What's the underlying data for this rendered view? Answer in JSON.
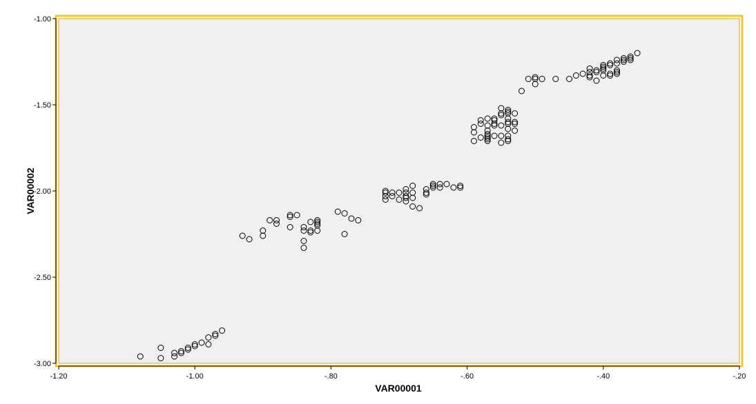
{
  "chart_data": {
    "type": "scatter",
    "xlabel": "VAR00001",
    "ylabel": "VAR00002",
    "xlim": [
      -1.2,
      -0.2
    ],
    "ylim": [
      -3.0,
      -1.0
    ],
    "xticks": [
      -1.2,
      -1.0,
      -0.8,
      -0.6,
      -0.4,
      -0.2
    ],
    "xtick_labels": [
      "-1.20",
      "-1.00",
      "-.80",
      "-.60",
      "-.40",
      "-.20"
    ],
    "yticks": [
      -1.0,
      -1.5,
      -2.0,
      -2.5,
      -3.0
    ],
    "ytick_labels": [
      "-1.00",
      "-1.50",
      "-2.00",
      "-2.50",
      "-3.00"
    ],
    "grid": false,
    "legend": "none",
    "colors": {
      "plot_background": "#f0f0f0",
      "frame": "#f2c43c",
      "marker_stroke": "#000000"
    },
    "marker": "open-circle",
    "points": [
      [
        -1.08,
        -2.96
      ],
      [
        -1.05,
        -2.91
      ],
      [
        -1.05,
        -2.97
      ],
      [
        -1.03,
        -2.94
      ],
      [
        -1.03,
        -2.96
      ],
      [
        -1.02,
        -2.93
      ],
      [
        -1.02,
        -2.94
      ],
      [
        -1.01,
        -2.91
      ],
      [
        -1.01,
        -2.92
      ],
      [
        -1.0,
        -2.9
      ],
      [
        -1.0,
        -2.89
      ],
      [
        -0.99,
        -2.88
      ],
      [
        -0.98,
        -2.85
      ],
      [
        -0.98,
        -2.89
      ],
      [
        -0.97,
        -2.83
      ],
      [
        -0.97,
        -2.84
      ],
      [
        -0.96,
        -2.81
      ],
      [
        -0.93,
        -2.26
      ],
      [
        -0.92,
        -2.28
      ],
      [
        -0.9,
        -2.23
      ],
      [
        -0.9,
        -2.26
      ],
      [
        -0.89,
        -2.17
      ],
      [
        -0.88,
        -2.17
      ],
      [
        -0.88,
        -2.19
      ],
      [
        -0.86,
        -2.14
      ],
      [
        -0.86,
        -2.15
      ],
      [
        -0.86,
        -2.21
      ],
      [
        -0.85,
        -2.14
      ],
      [
        -0.84,
        -2.21
      ],
      [
        -0.84,
        -2.23
      ],
      [
        -0.84,
        -2.29
      ],
      [
        -0.84,
        -2.33
      ],
      [
        -0.83,
        -2.18
      ],
      [
        -0.83,
        -2.23
      ],
      [
        -0.83,
        -2.24
      ],
      [
        -0.82,
        -2.17
      ],
      [
        -0.82,
        -2.18
      ],
      [
        -0.82,
        -2.19
      ],
      [
        -0.82,
        -2.2
      ],
      [
        -0.82,
        -2.23
      ],
      [
        -0.79,
        -2.12
      ],
      [
        -0.78,
        -2.13
      ],
      [
        -0.78,
        -2.25
      ],
      [
        -0.77,
        -2.16
      ],
      [
        -0.76,
        -2.17
      ],
      [
        -0.72,
        -2.0
      ],
      [
        -0.72,
        -2.01
      ],
      [
        -0.72,
        -2.03
      ],
      [
        -0.72,
        -2.05
      ],
      [
        -0.71,
        -2.01
      ],
      [
        -0.71,
        -2.03
      ],
      [
        -0.7,
        -2.01
      ],
      [
        -0.7,
        -2.05
      ],
      [
        -0.69,
        -1.99
      ],
      [
        -0.69,
        -2.01
      ],
      [
        -0.69,
        -2.03
      ],
      [
        -0.69,
        -2.04
      ],
      [
        -0.69,
        -2.06
      ],
      [
        -0.68,
        -1.97
      ],
      [
        -0.68,
        -2.01
      ],
      [
        -0.68,
        -2.04
      ],
      [
        -0.68,
        -2.09
      ],
      [
        -0.67,
        -2.1
      ],
      [
        -0.66,
        -1.99
      ],
      [
        -0.66,
        -2.01
      ],
      [
        -0.66,
        -2.02
      ],
      [
        -0.65,
        -1.96
      ],
      [
        -0.65,
        -1.97
      ],
      [
        -0.65,
        -1.98
      ],
      [
        -0.64,
        -1.96
      ],
      [
        -0.64,
        -1.98
      ],
      [
        -0.63,
        -1.96
      ],
      [
        -0.62,
        -1.98
      ],
      [
        -0.61,
        -1.97
      ],
      [
        -0.61,
        -1.98
      ],
      [
        -0.59,
        -1.63
      ],
      [
        -0.59,
        -1.66
      ],
      [
        -0.59,
        -1.71
      ],
      [
        -0.58,
        -1.59
      ],
      [
        -0.58,
        -1.61
      ],
      [
        -0.58,
        -1.69
      ],
      [
        -0.57,
        -1.58
      ],
      [
        -0.57,
        -1.62
      ],
      [
        -0.57,
        -1.65
      ],
      [
        -0.57,
        -1.67
      ],
      [
        -0.57,
        -1.68
      ],
      [
        -0.57,
        -1.69
      ],
      [
        -0.57,
        -1.7
      ],
      [
        -0.57,
        -1.71
      ],
      [
        -0.56,
        -1.58
      ],
      [
        -0.56,
        -1.59
      ],
      [
        -0.56,
        -1.61
      ],
      [
        -0.56,
        -1.62
      ],
      [
        -0.56,
        -1.68
      ],
      [
        -0.55,
        -1.52
      ],
      [
        -0.55,
        -1.55
      ],
      [
        -0.55,
        -1.56
      ],
      [
        -0.55,
        -1.62
      ],
      [
        -0.55,
        -1.68
      ],
      [
        -0.55,
        -1.72
      ],
      [
        -0.54,
        -1.53
      ],
      [
        -0.54,
        -1.54
      ],
      [
        -0.54,
        -1.55
      ],
      [
        -0.54,
        -1.58
      ],
      [
        -0.54,
        -1.6
      ],
      [
        -0.54,
        -1.61
      ],
      [
        -0.54,
        -1.64
      ],
      [
        -0.54,
        -1.68
      ],
      [
        -0.54,
        -1.7
      ],
      [
        -0.54,
        -1.71
      ],
      [
        -0.53,
        -1.55
      ],
      [
        -0.53,
        -1.6
      ],
      [
        -0.53,
        -1.61
      ],
      [
        -0.53,
        -1.65
      ],
      [
        -0.52,
        -1.42
      ],
      [
        -0.51,
        -1.35
      ],
      [
        -0.5,
        -1.34
      ],
      [
        -0.5,
        -1.35
      ],
      [
        -0.5,
        -1.38
      ],
      [
        -0.49,
        -1.35
      ],
      [
        -0.47,
        -1.35
      ],
      [
        -0.45,
        -1.35
      ],
      [
        -0.44,
        -1.33
      ],
      [
        -0.43,
        -1.32
      ],
      [
        -0.42,
        -1.29
      ],
      [
        -0.42,
        -1.31
      ],
      [
        -0.42,
        -1.33
      ],
      [
        -0.42,
        -1.34
      ],
      [
        -0.41,
        -1.3
      ],
      [
        -0.41,
        -1.31
      ],
      [
        -0.41,
        -1.36
      ],
      [
        -0.4,
        -1.27
      ],
      [
        -0.4,
        -1.28
      ],
      [
        -0.4,
        -1.29
      ],
      [
        -0.4,
        -1.3
      ],
      [
        -0.4,
        -1.33
      ],
      [
        -0.39,
        -1.26
      ],
      [
        -0.39,
        -1.27
      ],
      [
        -0.39,
        -1.32
      ],
      [
        -0.39,
        -1.33
      ],
      [
        -0.38,
        -1.24
      ],
      [
        -0.38,
        -1.26
      ],
      [
        -0.38,
        -1.3
      ],
      [
        -0.38,
        -1.31
      ],
      [
        -0.38,
        -1.32
      ],
      [
        -0.37,
        -1.23
      ],
      [
        -0.37,
        -1.24
      ],
      [
        -0.37,
        -1.25
      ],
      [
        -0.36,
        -1.22
      ],
      [
        -0.36,
        -1.23
      ],
      [
        -0.36,
        -1.24
      ],
      [
        -0.35,
        -1.2
      ]
    ]
  }
}
